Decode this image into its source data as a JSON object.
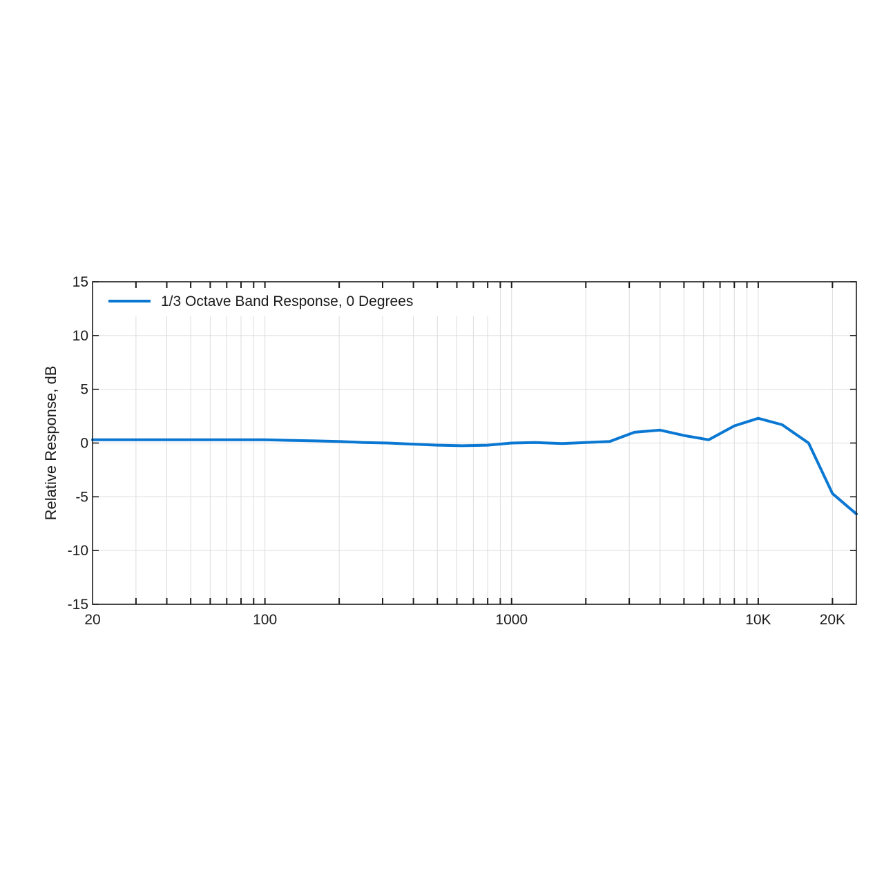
{
  "chart_data": {
    "type": "line",
    "x_scale": "log",
    "xlim": [
      20,
      25000
    ],
    "ylim": [
      -15,
      15
    ],
    "xlabel": "",
    "ylabel": "Relative Response, dB",
    "x_ticks": [
      {
        "value": 20,
        "label": "20"
      },
      {
        "value": 100,
        "label": "100"
      },
      {
        "value": 1000,
        "label": "1000"
      },
      {
        "value": 10000,
        "label": "10K"
      },
      {
        "value": 20000,
        "label": "20K"
      }
    ],
    "y_ticks": [
      {
        "value": 15,
        "label": "15"
      },
      {
        "value": 10,
        "label": "10"
      },
      {
        "value": 5,
        "label": "5"
      },
      {
        "value": 0,
        "label": "0"
      },
      {
        "value": -5,
        "label": "-5"
      },
      {
        "value": -10,
        "label": "-10"
      },
      {
        "value": -15,
        "label": "-15"
      }
    ],
    "grid": true,
    "legend_position": "top-left",
    "series": [
      {
        "name": "1/3 Octave Band Response, 0 Degrees",
        "color": "#0a78d2",
        "x": [
          20,
          25,
          31.5,
          40,
          50,
          63,
          80,
          100,
          125,
          160,
          200,
          250,
          315,
          400,
          500,
          630,
          800,
          1000,
          1250,
          1600,
          2000,
          2500,
          3150,
          4000,
          5000,
          6300,
          8000,
          10000,
          12500,
          16000,
          20000,
          25000
        ],
        "y": [
          0.3,
          0.3,
          0.3,
          0.3,
          0.3,
          0.3,
          0.3,
          0.3,
          0.25,
          0.2,
          0.15,
          0.05,
          0.0,
          -0.1,
          -0.2,
          -0.25,
          -0.2,
          0.0,
          0.05,
          -0.05,
          0.05,
          0.15,
          1.0,
          1.2,
          0.7,
          0.3,
          1.6,
          2.3,
          1.7,
          0.0,
          -4.7,
          -6.6
        ]
      }
    ]
  }
}
